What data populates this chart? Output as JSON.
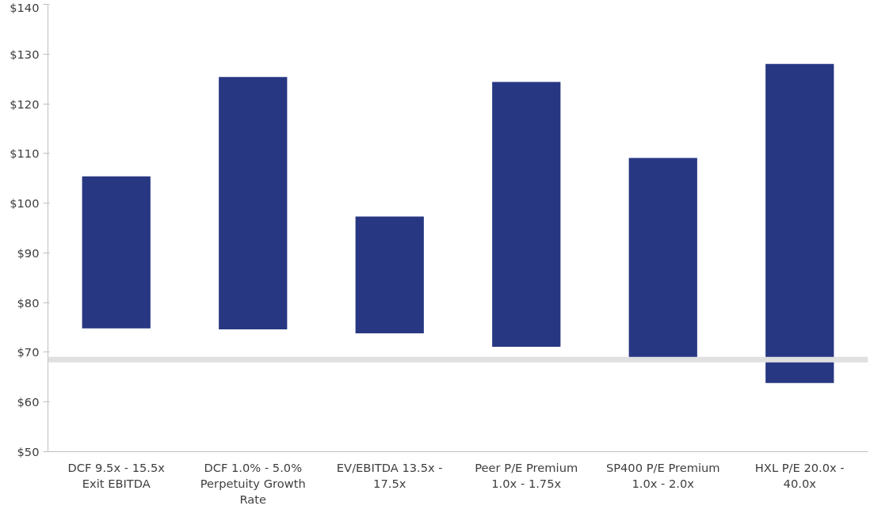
{
  "chart_data": {
    "type": "bar",
    "categories": [
      "DCF 9.5x - 15.5x Exit EBITDA",
      "DCF 1.0% - 5.0% Perpetuity Growth Rate",
      "EV/EBITDA 13.5x - 17.5x",
      "Peer P/E Premium 1.0x - 1.75x",
      "SP400 P/E Premium 1.0x - 2.0x",
      "HXL P/E 20.0x - 40.0x"
    ],
    "base": [
      74.8,
      74.6,
      73.8,
      71.1,
      68.6,
      63.8
    ],
    "values": [
      30.6,
      50.8,
      23.5,
      53.3,
      40.5,
      64.2
    ],
    "color": "#283782",
    "ylim": [
      50,
      140
    ],
    "yticks": [
      {
        "value": 50,
        "label": "$50"
      },
      {
        "value": 60,
        "label": "$60"
      },
      {
        "value": 70,
        "label": "$70"
      },
      {
        "value": 80,
        "label": "$80"
      },
      {
        "value": 90,
        "label": "$90"
      },
      {
        "value": 100,
        "label": "$100"
      },
      {
        "value": 110,
        "label": "$110"
      },
      {
        "value": 120,
        "label": "$120"
      },
      {
        "value": 130,
        "label": "$130"
      },
      {
        "value": 140,
        "label": "$140"
      }
    ],
    "ref_lines": [
      {
        "axis": "y",
        "value": 68.5,
        "label": null,
        "color": "#e0e0e0"
      }
    ],
    "grid": false
  }
}
